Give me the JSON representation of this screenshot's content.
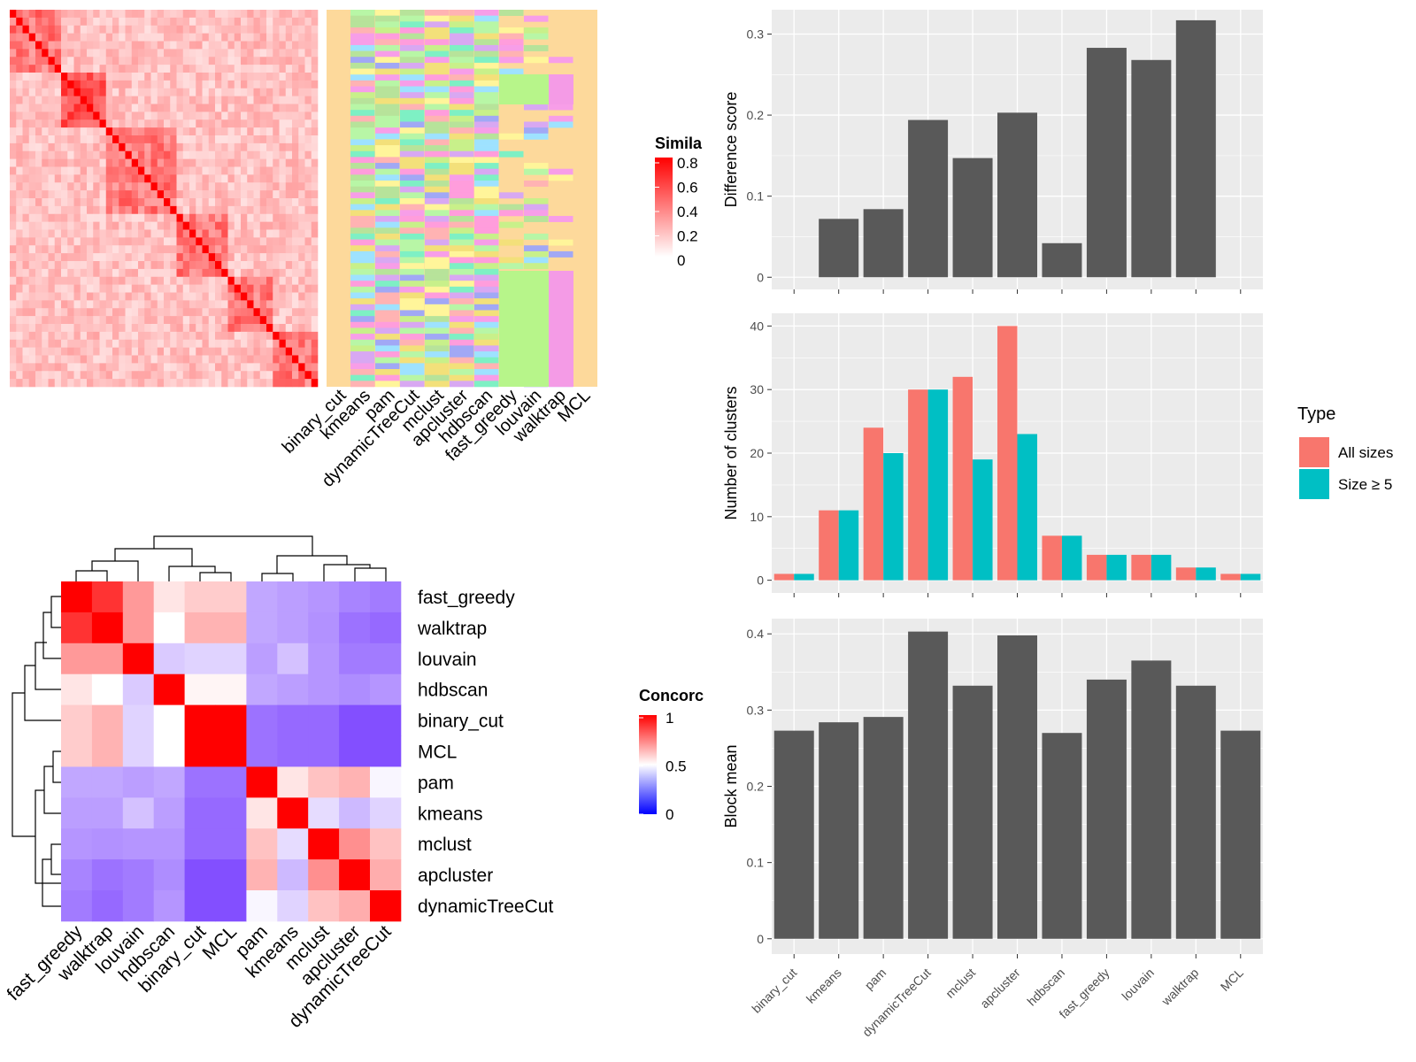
{
  "colors": {
    "bar_dark": "#595959",
    "panel_bg": "#ebebeb",
    "grid": "#ffffff",
    "all_sizes": "#F8766D",
    "size5": "#00BFC4",
    "sim_high": "#ff0000",
    "conc_low": "#0000ff",
    "bg_cluster": "#fdd99b"
  },
  "chart_data": [
    {
      "id": "similarity_heatmap",
      "type": "heatmap",
      "legend_title": "Simila",
      "legend_ticks": [
        "0.8",
        "0.6",
        "0.4",
        "0.2",
        "0"
      ],
      "annotation_columns": [
        "binary_cut",
        "kmeans",
        "pam",
        "dynamicTreeCut",
        "mclust",
        "apcluster",
        "hdbscan",
        "fast_greedy",
        "louvain",
        "walktrap",
        "MCL"
      ]
    },
    {
      "id": "concordance_heatmap",
      "type": "heatmap",
      "legend_title": "Concorc",
      "legend_ticks": [
        "1",
        "0.5",
        "0"
      ],
      "rows": [
        "fast_greedy",
        "walktrap",
        "louvain",
        "hdbscan",
        "binary_cut",
        "MCL",
        "pam",
        "kmeans",
        "mclust",
        "apcluster",
        "dynamicTreeCut"
      ],
      "cols": [
        "fast_greedy",
        "walktrap",
        "louvain",
        "hdbscan",
        "binary_cut",
        "MCL",
        "pam",
        "kmeans",
        "mclust",
        "apcluster",
        "dynamicTreeCut"
      ],
      "values": [
        [
          1.0,
          0.9,
          0.7,
          0.55,
          0.6,
          0.6,
          0.3,
          0.28,
          0.26,
          0.22,
          0.2
        ],
        [
          0.9,
          1.0,
          0.7,
          0.5,
          0.65,
          0.65,
          0.3,
          0.28,
          0.25,
          0.18,
          0.16
        ],
        [
          0.7,
          0.7,
          1.0,
          0.38,
          0.4,
          0.4,
          0.28,
          0.36,
          0.26,
          0.2,
          0.2
        ],
        [
          0.55,
          0.5,
          0.38,
          1.0,
          0.52,
          0.52,
          0.3,
          0.28,
          0.26,
          0.24,
          0.26
        ],
        [
          0.6,
          0.65,
          0.4,
          0.5,
          1.0,
          1.0,
          0.18,
          0.16,
          0.16,
          0.1,
          0.1
        ],
        [
          0.6,
          0.65,
          0.4,
          0.5,
          1.0,
          1.0,
          0.18,
          0.16,
          0.16,
          0.1,
          0.1
        ],
        [
          0.3,
          0.3,
          0.28,
          0.3,
          0.18,
          0.18,
          1.0,
          0.55,
          0.62,
          0.65,
          0.48
        ],
        [
          0.28,
          0.28,
          0.36,
          0.28,
          0.16,
          0.16,
          0.55,
          1.0,
          0.42,
          0.34,
          0.4
        ],
        [
          0.26,
          0.25,
          0.26,
          0.26,
          0.16,
          0.16,
          0.62,
          0.42,
          1.0,
          0.72,
          0.62
        ],
        [
          0.22,
          0.18,
          0.2,
          0.24,
          0.1,
          0.1,
          0.65,
          0.34,
          0.72,
          1.0,
          0.66
        ],
        [
          0.2,
          0.16,
          0.2,
          0.26,
          0.1,
          0.1,
          0.48,
          0.4,
          0.62,
          0.66,
          1.0
        ]
      ]
    },
    {
      "id": "difference_score",
      "type": "bar",
      "ylabel": "Difference score",
      "ylim": [
        -0.015,
        0.33
      ],
      "yticks": [
        0.0,
        0.1,
        0.2,
        0.3
      ],
      "categories": [
        "binary_cut",
        "kmeans",
        "pam",
        "dynamicTreeCut",
        "mclust",
        "apcluster",
        "hdbscan",
        "fast_greedy",
        "louvain",
        "walktrap",
        "MCL"
      ],
      "values": [
        0.0,
        0.072,
        0.084,
        0.194,
        0.147,
        0.203,
        0.042,
        0.283,
        0.268,
        0.317,
        0.0
      ]
    },
    {
      "id": "number_of_clusters",
      "type": "bar",
      "ylabel": "Number of clusters",
      "ylim": [
        -2,
        42
      ],
      "yticks": [
        0,
        10,
        20,
        30,
        40
      ],
      "categories": [
        "binary_cut",
        "kmeans",
        "pam",
        "dynamicTreeCut",
        "mclust",
        "apcluster",
        "hdbscan",
        "fast_greedy",
        "louvain",
        "walktrap",
        "MCL"
      ],
      "legend": {
        "title": "Type",
        "placement": "right"
      },
      "series": [
        {
          "name": "All sizes",
          "values": [
            1,
            11,
            24,
            30,
            32,
            40,
            7,
            4,
            4,
            2,
            1
          ]
        },
        {
          "name": "Size ≥ 5",
          "values": [
            1,
            11,
            20,
            30,
            19,
            23,
            7,
            4,
            4,
            2,
            1
          ]
        }
      ]
    },
    {
      "id": "block_mean",
      "type": "bar",
      "ylabel": "Block mean",
      "ylim": [
        -0.02,
        0.42
      ],
      "yticks": [
        0.0,
        0.1,
        0.2,
        0.3,
        0.4
      ],
      "categories": [
        "binary_cut",
        "kmeans",
        "pam",
        "dynamicTreeCut",
        "mclust",
        "apcluster",
        "hdbscan",
        "fast_greedy",
        "louvain",
        "walktrap",
        "MCL"
      ],
      "values": [
        0.273,
        0.284,
        0.291,
        0.403,
        0.332,
        0.398,
        0.27,
        0.34,
        0.365,
        0.332,
        0.273
      ]
    }
  ]
}
